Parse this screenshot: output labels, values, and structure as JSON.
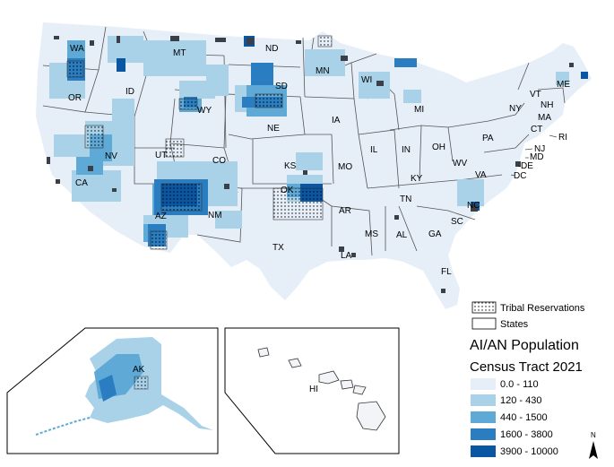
{
  "colors": {
    "class0": "#e6eef8",
    "class1": "#a9d1e7",
    "class2": "#5ea9d6",
    "class3": "#2a7dc0",
    "class4": "#0b56a3",
    "state_border": "#555555",
    "reservation_fill": "#3a3f48",
    "inset_border": "#000000"
  },
  "states": {
    "WA": "WA",
    "OR": "OR",
    "CA": "CA",
    "ID": "ID",
    "NV": "NV",
    "MT": "MT",
    "WY": "WY",
    "UT": "UT",
    "AZ": "AZ",
    "CO": "CO",
    "NM": "NM",
    "ND": "ND",
    "SD": "SD",
    "NE": "NE",
    "KS": "KS",
    "OK": "OK",
    "TX": "TX",
    "MN": "MN",
    "IA": "IA",
    "MO": "MO",
    "AR": "AR",
    "LA": "LA",
    "WI": "WI",
    "IL": "IL",
    "MI": "MI",
    "IN": "IN",
    "OH": "OH",
    "KY": "KY",
    "TN": "TN",
    "MS": "MS",
    "AL": "AL",
    "GA": "GA",
    "FL": "FL",
    "SC": "SC",
    "NC": "NC",
    "VA": "VA",
    "WV": "WV",
    "PA": "PA",
    "NY": "NY",
    "VT": "VT",
    "NH": "NH",
    "ME": "ME",
    "MA": "MA",
    "CT": "CT",
    "RI": "RI",
    "NJ": "NJ",
    "MD": "MD",
    "DE": "DE",
    "DC": "DC",
    "AK": "AK",
    "HI": "HI"
  },
  "legend": {
    "tribal": "Tribal Reservations",
    "states": "States",
    "title": "AI/AN Population",
    "subtitle": "Census Tract 2021",
    "classes": [
      "0.0 - 110",
      "120 - 430",
      "440 - 1500",
      "1600 - 3800",
      "3900 - 10000"
    ]
  },
  "north": "N"
}
